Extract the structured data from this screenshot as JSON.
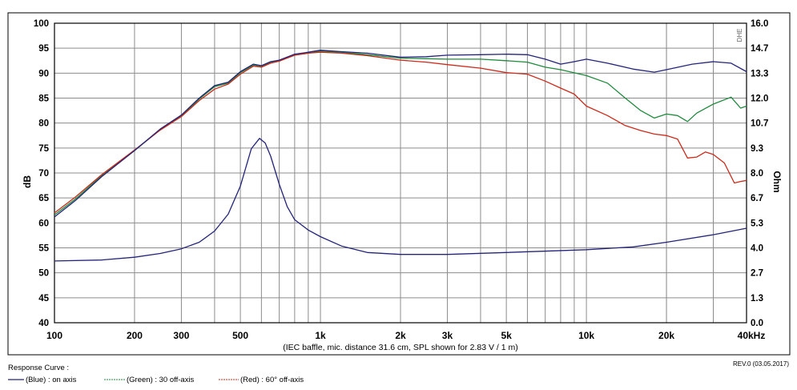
{
  "chart_data": {
    "type": "line",
    "xscale": "log",
    "xlim": [
      100,
      40000
    ],
    "ylim": [
      40,
      100
    ],
    "ylabel": "dB",
    "y2label": "Ohm",
    "y2lim": [
      0,
      16
    ],
    "grid": true,
    "x_ticks": [
      {
        "value": 100,
        "label": "100"
      },
      {
        "value": 200,
        "label": "200"
      },
      {
        "value": 300,
        "label": "300"
      },
      {
        "value": 500,
        "label": "500"
      },
      {
        "value": 1000,
        "label": "1k"
      },
      {
        "value": 2000,
        "label": "2k"
      },
      {
        "value": 3000,
        "label": "3k"
      },
      {
        "value": 5000,
        "label": "5k"
      },
      {
        "value": 10000,
        "label": "10k"
      },
      {
        "value": 20000,
        "label": "20k"
      },
      {
        "value": 40000,
        "label": "40kHz"
      }
    ],
    "y_ticks": [
      "100",
      "95",
      "90",
      "85",
      "80",
      "75",
      "70",
      "65",
      "60",
      "55",
      "50",
      "45",
      "40"
    ],
    "y2_ticks": [
      "16.0",
      "14.7",
      "13.3",
      "12.0",
      "10.7",
      "9.3",
      "8.0",
      "6.7",
      "5.3",
      "4.0",
      "2.7",
      "1.3",
      "0.0"
    ],
    "note": "(IEC baffle, mic. distance 31.6 cm, SPL shown for 2.83 V / 1 m)",
    "series": [
      {
        "name": "(Blue) : on axis",
        "color": "#23237a",
        "axis": "left",
        "points": [
          [
            100,
            61.2
          ],
          [
            120,
            64.5
          ],
          [
            150,
            69.2
          ],
          [
            200,
            74.5
          ],
          [
            250,
            78.8
          ],
          [
            300,
            81.6
          ],
          [
            350,
            85
          ],
          [
            400,
            87.5
          ],
          [
            450,
            88.2
          ],
          [
            500,
            90.3
          ],
          [
            560,
            91.8
          ],
          [
            600,
            91.5
          ],
          [
            650,
            92.3
          ],
          [
            700,
            92.6
          ],
          [
            800,
            93.8
          ],
          [
            900,
            94.2
          ],
          [
            1000,
            94.6
          ],
          [
            1200,
            94.3
          ],
          [
            1500,
            94
          ],
          [
            2000,
            93.2
          ],
          [
            2500,
            93.3
          ],
          [
            3000,
            93.6
          ],
          [
            4000,
            93.7
          ],
          [
            5000,
            93.8
          ],
          [
            6000,
            93.7
          ],
          [
            7000,
            92.8
          ],
          [
            8000,
            91.8
          ],
          [
            9000,
            92.3
          ],
          [
            10000,
            92.8
          ],
          [
            12000,
            92
          ],
          [
            15000,
            90.8
          ],
          [
            18000,
            90.2
          ],
          [
            20000,
            90.7
          ],
          [
            25000,
            91.8
          ],
          [
            30000,
            92.3
          ],
          [
            35000,
            92
          ],
          [
            40000,
            90.3
          ]
        ]
      },
      {
        "name": "(Green) : 30 off-axis",
        "color": "#1e8a3c",
        "axis": "left",
        "points": [
          [
            100,
            61.6
          ],
          [
            120,
            64.8
          ],
          [
            150,
            69.4
          ],
          [
            200,
            74.5
          ],
          [
            250,
            78.7
          ],
          [
            300,
            81.4
          ],
          [
            350,
            84.8
          ],
          [
            400,
            87.3
          ],
          [
            450,
            88
          ],
          [
            500,
            90.1
          ],
          [
            560,
            91.6
          ],
          [
            600,
            91.4
          ],
          [
            650,
            92.2
          ],
          [
            700,
            92.5
          ],
          [
            800,
            93.6
          ],
          [
            900,
            94
          ],
          [
            1000,
            94.4
          ],
          [
            1200,
            94.2
          ],
          [
            1500,
            93.7
          ],
          [
            2000,
            93
          ],
          [
            2500,
            92.9
          ],
          [
            3000,
            92.8
          ],
          [
            4000,
            92.8
          ],
          [
            5000,
            92.5
          ],
          [
            6000,
            92.2
          ],
          [
            7000,
            91.2
          ],
          [
            8000,
            90.7
          ],
          [
            10000,
            89.5
          ],
          [
            12000,
            88
          ],
          [
            14000,
            85
          ],
          [
            16000,
            82.5
          ],
          [
            18000,
            81
          ],
          [
            20000,
            81.8
          ],
          [
            22000,
            81.5
          ],
          [
            24000,
            80.3
          ],
          [
            26000,
            82
          ],
          [
            30000,
            83.8
          ],
          [
            35000,
            85.2
          ],
          [
            38000,
            83
          ],
          [
            40000,
            83.4
          ]
        ]
      },
      {
        "name": "(Red) : 60° off-axis",
        "color": "#cc2a1a",
        "axis": "left",
        "points": [
          [
            100,
            62
          ],
          [
            120,
            65.2
          ],
          [
            150,
            69.6
          ],
          [
            200,
            74.6
          ],
          [
            250,
            78.6
          ],
          [
            300,
            81.3
          ],
          [
            350,
            84.5
          ],
          [
            400,
            86.8
          ],
          [
            450,
            87.8
          ],
          [
            500,
            89.8
          ],
          [
            560,
            91.4
          ],
          [
            600,
            91.2
          ],
          [
            650,
            92
          ],
          [
            700,
            92.4
          ],
          [
            800,
            93.6
          ],
          [
            900,
            94
          ],
          [
            1000,
            94.2
          ],
          [
            1200,
            94
          ],
          [
            1500,
            93.5
          ],
          [
            2000,
            92.6
          ],
          [
            2500,
            92.2
          ],
          [
            3000,
            91.7
          ],
          [
            4000,
            91
          ],
          [
            5000,
            90.1
          ],
          [
            6000,
            89.8
          ],
          [
            7000,
            88.4
          ],
          [
            8000,
            87
          ],
          [
            9000,
            85.8
          ],
          [
            10000,
            83.4
          ],
          [
            12000,
            81.5
          ],
          [
            14000,
            79.5
          ],
          [
            16000,
            78.5
          ],
          [
            18000,
            77.8
          ],
          [
            20000,
            77.5
          ],
          [
            22000,
            76.8
          ],
          [
            24000,
            73
          ],
          [
            26000,
            73.2
          ],
          [
            28000,
            74.2
          ],
          [
            30000,
            73.7
          ],
          [
            33000,
            72
          ],
          [
            36000,
            68
          ],
          [
            38000,
            68.3
          ],
          [
            40000,
            68.5
          ]
        ]
      },
      {
        "name": "Impedance",
        "color": "#23237a",
        "axis": "right",
        "points": [
          [
            100,
            3.3
          ],
          [
            150,
            3.35
          ],
          [
            200,
            3.5
          ],
          [
            250,
            3.7
          ],
          [
            300,
            3.95
          ],
          [
            350,
            4.3
          ],
          [
            400,
            4.9
          ],
          [
            450,
            5.8
          ],
          [
            500,
            7.3
          ],
          [
            550,
            9.3
          ],
          [
            590,
            9.85
          ],
          [
            620,
            9.6
          ],
          [
            650,
            8.9
          ],
          [
            700,
            7.4
          ],
          [
            750,
            6.2
          ],
          [
            800,
            5.5
          ],
          [
            900,
            4.95
          ],
          [
            1000,
            4.6
          ],
          [
            1200,
            4.1
          ],
          [
            1500,
            3.75
          ],
          [
            2000,
            3.65
          ],
          [
            3000,
            3.65
          ],
          [
            5000,
            3.75
          ],
          [
            10000,
            3.9
          ],
          [
            15000,
            4.05
          ],
          [
            20000,
            4.3
          ],
          [
            30000,
            4.7
          ],
          [
            40000,
            5.05
          ]
        ]
      }
    ]
  },
  "legend": {
    "header": "Response Curve :",
    "items": [
      {
        "label": "(Blue) : on axis",
        "color": "#23237a"
      },
      {
        "label": "(Green) : 30 off-axis",
        "color": "#1e8a3c"
      },
      {
        "label": "(Red) : 60° off-axis",
        "color": "#cc2a1a"
      }
    ]
  },
  "revision": "REV.0 (03.05.2017)",
  "brand": "DHE"
}
